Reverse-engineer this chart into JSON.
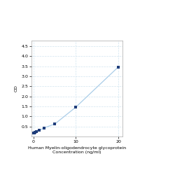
{
  "x_data": [
    0,
    0.156,
    0.312,
    0.625,
    1.25,
    2.5,
    5,
    10,
    20
  ],
  "y_data": [
    0.158,
    0.175,
    0.196,
    0.228,
    0.297,
    0.433,
    0.622,
    1.469,
    3.467
  ],
  "line_color": "#aacde8",
  "marker_color": "#1f3d7a",
  "marker_style": "s",
  "marker_size": 3.5,
  "xlabel_line1": "Human Myelin-oligodendrocyte glycoprotein",
  "xlabel_line2": "Concentration (ng/ml)",
  "ylabel": "OD",
  "xlim": [
    -0.5,
    21
  ],
  "ylim": [
    0,
    4.8
  ],
  "yticks": [
    0.5,
    1.0,
    1.5,
    2.0,
    2.5,
    3.0,
    3.5,
    4.0,
    4.5
  ],
  "xticks": [
    0,
    10,
    20
  ],
  "grid_color": "#d0e4f0",
  "background_color": "#ffffff",
  "font_size_label": 4.5,
  "font_size_tick": 4.5
}
